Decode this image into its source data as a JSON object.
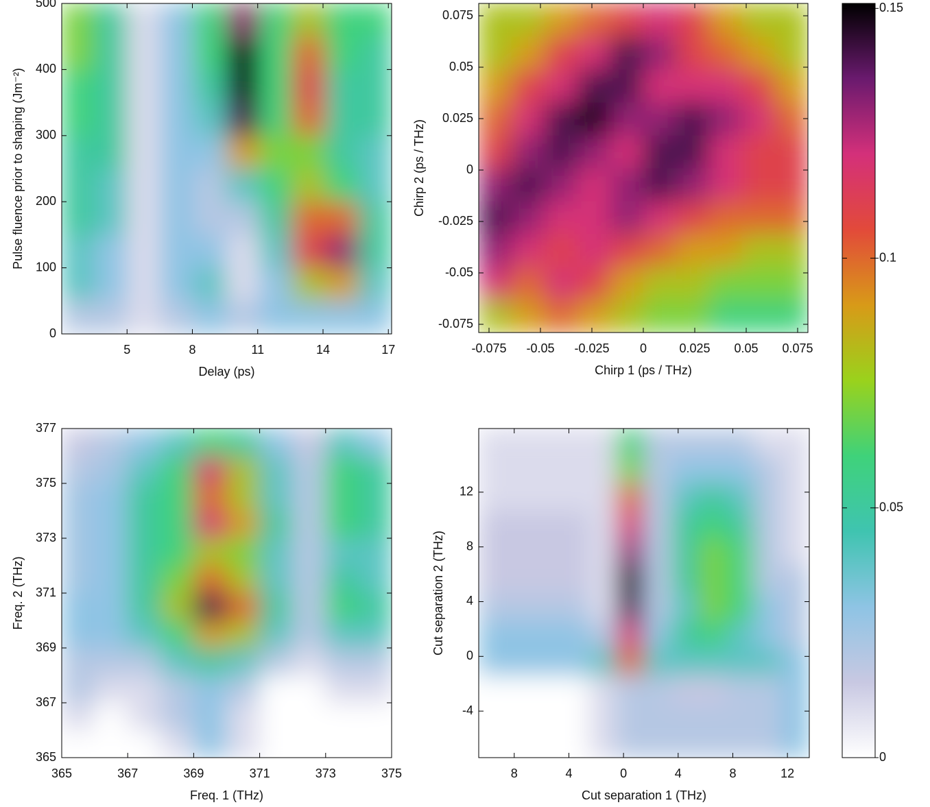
{
  "chart_data": [
    {
      "type": "heatmap",
      "xlabel": "Delay (ps)",
      "ylabel": "Pulse fluence prior to shaping (Jm⁻²)",
      "xlim": [
        2,
        17.15
      ],
      "ylim": [
        0,
        500
      ],
      "xticks": [
        5,
        8,
        11,
        14,
        17
      ],
      "yticks": [
        0,
        100,
        200,
        300,
        400,
        500
      ],
      "z": [
        [
          0.02,
          0.02,
          0.01,
          0.02,
          0.03,
          0.02,
          0.03,
          0.03,
          0.03,
          0.03
        ],
        [
          0.04,
          0.03,
          0.01,
          0.03,
          0.04,
          0.01,
          0.03,
          0.08,
          0.09,
          0.04
        ],
        [
          0.04,
          0.03,
          0.01,
          0.03,
          0.03,
          0.01,
          0.04,
          0.11,
          0.13,
          0.05
        ],
        [
          0.05,
          0.04,
          0.01,
          0.03,
          0.02,
          0.02,
          0.05,
          0.1,
          0.1,
          0.05
        ],
        [
          0.05,
          0.04,
          0.01,
          0.03,
          0.02,
          0.04,
          0.06,
          0.08,
          0.06,
          0.04
        ],
        [
          0.05,
          0.05,
          0.01,
          0.03,
          0.03,
          0.09,
          0.07,
          0.07,
          0.05,
          0.04
        ],
        [
          0.06,
          0.05,
          0.01,
          0.03,
          0.04,
          0.14,
          0.06,
          0.1,
          0.05,
          0.05
        ],
        [
          0.06,
          0.05,
          0.01,
          0.03,
          0.05,
          0.15,
          0.06,
          0.11,
          0.05,
          0.05
        ],
        [
          0.07,
          0.05,
          0.01,
          0.03,
          0.06,
          0.15,
          0.06,
          0.1,
          0.06,
          0.05
        ],
        [
          0.07,
          0.05,
          0.01,
          0.03,
          0.06,
          0.13,
          0.06,
          0.08,
          0.06,
          0.06
        ]
      ]
    },
    {
      "type": "heatmap",
      "xlabel": "Chirp 1 (ps / THz)",
      "ylabel": "Chirp 2 (ps / THz)",
      "xlim": [
        -0.08,
        0.08
      ],
      "ylim": [
        -0.079,
        0.081
      ],
      "xticks": [
        -0.075,
        -0.05,
        -0.025,
        0,
        0.025,
        0.05,
        0.075
      ],
      "yticks": [
        -0.075,
        -0.05,
        -0.025,
        0,
        0.025,
        0.05,
        0.075
      ],
      "z": [
        [
          0.08,
          0.09,
          0.1,
          0.09,
          0.08,
          0.07,
          0.07,
          0.06,
          0.06,
          0.06
        ],
        [
          0.12,
          0.1,
          0.12,
          0.11,
          0.09,
          0.08,
          0.08,
          0.07,
          0.07,
          0.07
        ],
        [
          0.13,
          0.12,
          0.11,
          0.12,
          0.11,
          0.1,
          0.09,
          0.09,
          0.08,
          0.08
        ],
        [
          0.14,
          0.13,
          0.12,
          0.12,
          0.13,
          0.12,
          0.11,
          0.1,
          0.1,
          0.1
        ],
        [
          0.13,
          0.14,
          0.13,
          0.12,
          0.13,
          0.14,
          0.13,
          0.12,
          0.11,
          0.11
        ],
        [
          0.11,
          0.13,
          0.14,
          0.13,
          0.12,
          0.14,
          0.14,
          0.12,
          0.11,
          0.11
        ],
        [
          0.1,
          0.12,
          0.14,
          0.15,
          0.13,
          0.13,
          0.14,
          0.13,
          0.12,
          0.1
        ],
        [
          0.09,
          0.11,
          0.12,
          0.14,
          0.14,
          0.12,
          0.12,
          0.12,
          0.11,
          0.09
        ],
        [
          0.08,
          0.09,
          0.11,
          0.12,
          0.14,
          0.13,
          0.11,
          0.1,
          0.09,
          0.08
        ],
        [
          0.08,
          0.08,
          0.09,
          0.1,
          0.11,
          0.12,
          0.11,
          0.09,
          0.08,
          0.08
        ]
      ]
    },
    {
      "type": "heatmap",
      "xlabel": "Freq. 1 (THz)",
      "ylabel": "Freq. 2 (THz)",
      "xlim": [
        365,
        375
      ],
      "ylim": [
        365,
        377
      ],
      "xticks": [
        365,
        367,
        369,
        371,
        373,
        375
      ],
      "yticks": [
        365,
        367,
        369,
        371,
        373,
        375,
        377
      ],
      "z": [
        [
          0,
          0,
          0,
          0.01,
          0.03,
          0.01,
          0,
          0,
          0,
          0
        ],
        [
          0.01,
          0,
          0.01,
          0.02,
          0.03,
          0.01,
          0,
          0,
          0,
          0
        ],
        [
          0.02,
          0.01,
          0.01,
          0.02,
          0.03,
          0.02,
          0,
          0,
          0.01,
          0.01
        ],
        [
          0.02,
          0.02,
          0.02,
          0.04,
          0.05,
          0.04,
          0.02,
          0.01,
          0.02,
          0.02
        ],
        [
          0.03,
          0.03,
          0.04,
          0.06,
          0.09,
          0.08,
          0.04,
          0.02,
          0.04,
          0.04
        ],
        [
          0.03,
          0.03,
          0.05,
          0.08,
          0.14,
          0.1,
          0.05,
          0.02,
          0.06,
          0.05
        ],
        [
          0.025,
          0.03,
          0.05,
          0.07,
          0.1,
          0.08,
          0.04,
          0.02,
          0.05,
          0.04
        ],
        [
          0.025,
          0.03,
          0.05,
          0.06,
          0.08,
          0.07,
          0.04,
          0.02,
          0.04,
          0.04
        ],
        [
          0.025,
          0.03,
          0.05,
          0.06,
          0.12,
          0.09,
          0.05,
          0.02,
          0.06,
          0.05
        ],
        [
          0.025,
          0.03,
          0.05,
          0.06,
          0.1,
          0.08,
          0.04,
          0.02,
          0.06,
          0.05
        ],
        [
          0.02,
          0.025,
          0.04,
          0.06,
          0.12,
          0.08,
          0.04,
          0.02,
          0.06,
          0.05
        ],
        [
          0.015,
          0.02,
          0.03,
          0.04,
          0.06,
          0.05,
          0.03,
          0.015,
          0.04,
          0.03
        ]
      ]
    },
    {
      "type": "heatmap",
      "xlabel": "Cut separation 1 (THz)",
      "ylabel": "Cut separation 2 (THz)",
      "xlim": [
        -10.6,
        13.6
      ],
      "ylim": [
        -7.4,
        16.65
      ],
      "xticks": [
        {
          "value": -8,
          "label": "8"
        },
        {
          "value": -4,
          "label": "4"
        },
        0,
        4,
        8,
        12
      ],
      "yticks": [
        -4,
        0,
        4,
        8,
        12
      ],
      "z": [
        [
          0,
          0,
          0,
          0,
          0.01,
          0.02,
          0.02,
          0.02,
          0.02,
          0.02,
          0.02,
          0.03
        ],
        [
          0,
          0,
          0,
          0,
          0.01,
          0.02,
          0.02,
          0.02,
          0.02,
          0.02,
          0.02,
          0.03
        ],
        [
          0,
          0,
          0,
          0,
          0.01,
          0.02,
          0.02,
          0.015,
          0.015,
          0.02,
          0.02,
          0.03
        ],
        [
          0.03,
          0.03,
          0.03,
          0.03,
          0.04,
          0.1,
          0.04,
          0.04,
          0.04,
          0.04,
          0.04,
          0.03
        ],
        [
          0.03,
          0.03,
          0.03,
          0.03,
          0.02,
          0.12,
          0.03,
          0.05,
          0.06,
          0.04,
          0.03,
          0.02
        ],
        [
          0.02,
          0.02,
          0.02,
          0.02,
          0.01,
          0.14,
          0.02,
          0.04,
          0.07,
          0.06,
          0.03,
          0.02
        ],
        [
          0.015,
          0.015,
          0.015,
          0.015,
          0.01,
          0.15,
          0.02,
          0.05,
          0.07,
          0.06,
          0.02,
          0.02
        ],
        [
          0.015,
          0.015,
          0.015,
          0.015,
          0.01,
          0.13,
          0.02,
          0.05,
          0.07,
          0.06,
          0.02,
          0.01
        ],
        [
          0.015,
          0.015,
          0.015,
          0.015,
          0.01,
          0.12,
          0.02,
          0.05,
          0.06,
          0.05,
          0.02,
          0.01
        ],
        [
          0.01,
          0.01,
          0.01,
          0.01,
          0.01,
          0.1,
          0.02,
          0.04,
          0.05,
          0.04,
          0.02,
          0.01
        ],
        [
          0.01,
          0.01,
          0.01,
          0.01,
          0.01,
          0.07,
          0.02,
          0.03,
          0.03,
          0.03,
          0.02,
          0.01
        ],
        [
          0.01,
          0.01,
          0.01,
          0.01,
          0.01,
          0.06,
          0.02,
          0.02,
          0.02,
          0.02,
          0.01,
          0.01
        ]
      ]
    },
    {
      "type": "colorbar",
      "zlim": [
        0,
        0.151
      ],
      "ticks": [
        0,
        0.05,
        0.1,
        0.15
      ],
      "colormap": [
        "#ffffff",
        "#c8c8e2",
        "#8ec4e4",
        "#3fc4b0",
        "#3fd27a",
        "#9ad21c",
        "#d89a18",
        "#e24a3a",
        "#d4307a",
        "#6a1a6e",
        "#000000"
      ]
    }
  ]
}
